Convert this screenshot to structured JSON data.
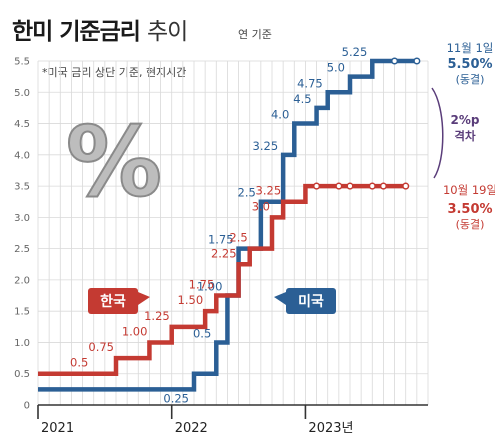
{
  "title": "한미 기준금리",
  "title_tail": "추이",
  "unit": "연 기준",
  "note": "*미국 금리 상단 기준, 현지시간",
  "colors": {
    "us": "#2b5f95",
    "korea": "#c43a32",
    "gap": "#5a3d7a",
    "grid": "#d9d9d9",
    "axis": "#555555"
  },
  "annotations": {
    "us_date": "11월 1일",
    "us_rate": "5.50%",
    "us_status": "(동결)",
    "kr_date": "10월 19일",
    "kr_rate": "3.50%",
    "kr_status": "(동결)",
    "gap_value": "2%p",
    "gap_label": "격차",
    "percent_symbol": "%"
  },
  "chart_data": {
    "type": "line",
    "step": true,
    "title": "한미 기준금리 추이",
    "ylim": [
      0,
      5.5
    ],
    "yticks": [
      "0",
      "0.5",
      "1.0",
      "1.5",
      "2.0",
      "2.5",
      "3.0",
      "3.5",
      "4.0",
      "4.5",
      "5.0",
      "5.5"
    ],
    "xlim": [
      "2021-01",
      "2023-12"
    ],
    "xticks": [
      "2021",
      "2022",
      "2023년"
    ],
    "grid": true,
    "series": [
      {
        "name": "미국",
        "color": "#2b5f95",
        "label_side": "left",
        "data": [
          {
            "x": "2021-01",
            "y": 0.25
          },
          {
            "x": "2022-03",
            "y": 0.5,
            "label": "0.25"
          },
          {
            "x": "2022-05",
            "y": 1.0,
            "label": "0.5"
          },
          {
            "x": "2022-06",
            "y": 1.75,
            "label": "1.00"
          },
          {
            "x": "2022-07",
            "y": 2.5,
            "label": "1.75"
          },
          {
            "x": "2022-09",
            "y": 3.25,
            "label": "2.5"
          },
          {
            "x": "2022-11",
            "y": 4.0,
            "label": "3.25"
          },
          {
            "x": "2022-12",
            "y": 4.5,
            "label": "4.0"
          },
          {
            "x": "2023-02",
            "y": 4.75,
            "label": "4.5"
          },
          {
            "x": "2023-03",
            "y": 5.0,
            "label": "4.75"
          },
          {
            "x": "2023-05",
            "y": 5.25,
            "label": "5.0"
          },
          {
            "x": "2023-07",
            "y": 5.5,
            "label": "5.25"
          },
          {
            "x": "2023-11",
            "y": 5.5
          }
        ],
        "hold_points": [
          "2023-09",
          "2023-11"
        ]
      },
      {
        "name": "한국",
        "color": "#c43a32",
        "label_side": "right",
        "data": [
          {
            "x": "2021-01",
            "y": 0.5,
            "label": "0.5"
          },
          {
            "x": "2021-08",
            "y": 0.75,
            "label": "0.75"
          },
          {
            "x": "2021-11",
            "y": 1.0,
            "label": "1.00"
          },
          {
            "x": "2022-01",
            "y": 1.25,
            "label": "1.25"
          },
          {
            "x": "2022-04",
            "y": 1.5,
            "label": "1.50"
          },
          {
            "x": "2022-05",
            "y": 1.75,
            "label": "1.75"
          },
          {
            "x": "2022-07",
            "y": 2.25,
            "label": "2.25"
          },
          {
            "x": "2022-08",
            "y": 2.5,
            "label": "2.5"
          },
          {
            "x": "2022-10",
            "y": 3.0,
            "label": "3.0"
          },
          {
            "x": "2022-11",
            "y": 3.25,
            "label": "3.25"
          },
          {
            "x": "2023-01",
            "y": 3.5
          },
          {
            "x": "2023-10",
            "y": 3.5
          }
        ],
        "hold_points": [
          "2023-02",
          "2023-04",
          "2023-05",
          "2023-07",
          "2023-08",
          "2023-10"
        ]
      }
    ]
  }
}
